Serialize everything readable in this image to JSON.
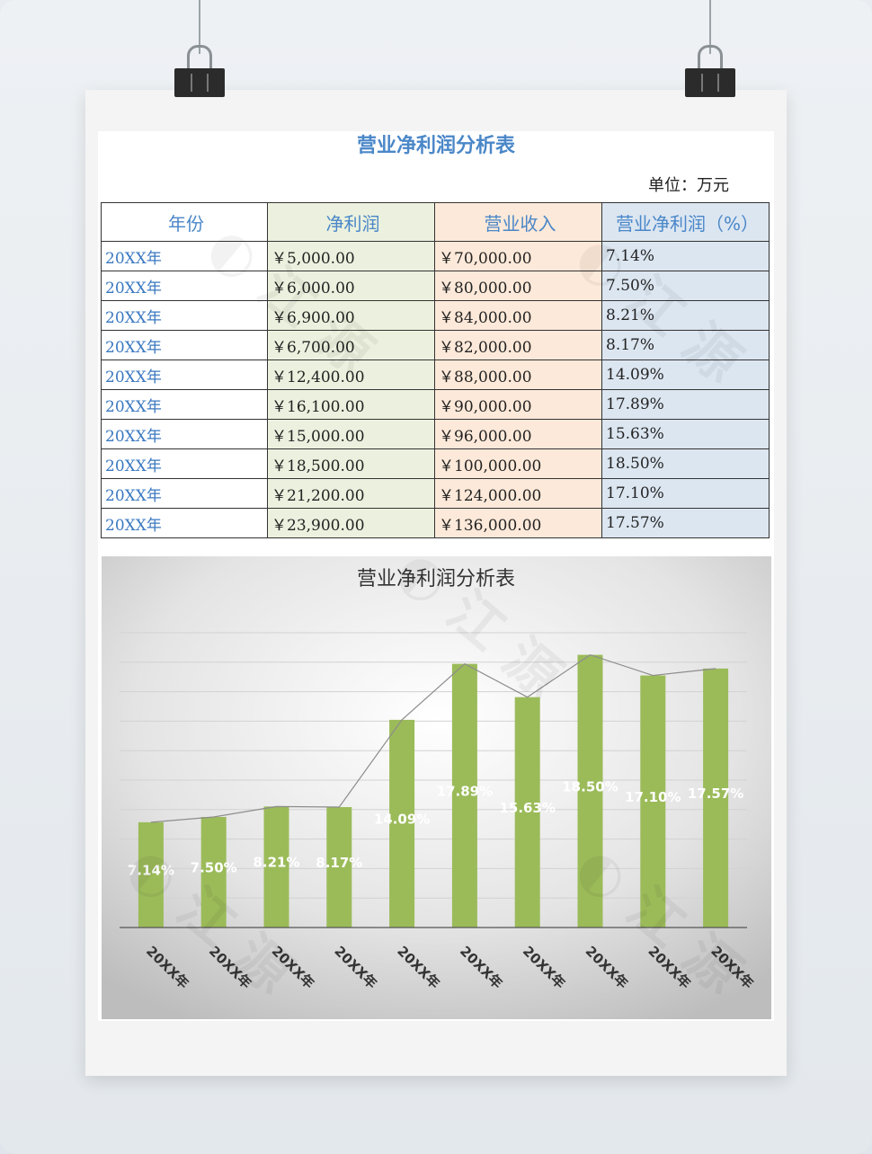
{
  "table": {
    "title": "营业净利润分析表",
    "unit": "单位：万元",
    "headers": [
      "年份",
      "净利润",
      "营业收入",
      "营业净利润（%）"
    ],
    "rows": [
      {
        "year": "20XX年",
        "net_profit": "￥5,000.00",
        "revenue": "￥70,000.00",
        "margin": "7.14%"
      },
      {
        "year": "20XX年",
        "net_profit": "￥6,000.00",
        "revenue": "￥80,000.00",
        "margin": "7.50%"
      },
      {
        "year": "20XX年",
        "net_profit": "￥6,900.00",
        "revenue": "￥84,000.00",
        "margin": "8.21%"
      },
      {
        "year": "20XX年",
        "net_profit": "￥6,700.00",
        "revenue": "￥82,000.00",
        "margin": "8.17%"
      },
      {
        "year": "20XX年",
        "net_profit": "￥12,400.00",
        "revenue": "￥88,000.00",
        "margin": "14.09%"
      },
      {
        "year": "20XX年",
        "net_profit": "￥16,100.00",
        "revenue": "￥90,000.00",
        "margin": "17.89%"
      },
      {
        "year": "20XX年",
        "net_profit": "￥15,000.00",
        "revenue": "￥96,000.00",
        "margin": "15.63%"
      },
      {
        "year": "20XX年",
        "net_profit": "￥18,500.00",
        "revenue": "￥100,000.00",
        "margin": "18.50%"
      },
      {
        "year": "20XX年",
        "net_profit": "￥21,200.00",
        "revenue": "￥124,000.00",
        "margin": "17.10%"
      },
      {
        "year": "20XX年",
        "net_profit": "￥23,900.00",
        "revenue": "￥136,000.00",
        "margin": "17.57%"
      }
    ]
  },
  "chart_data": {
    "type": "bar",
    "title": "营业净利润分析表",
    "categories": [
      "20XX年",
      "20XX年",
      "20XX年",
      "20XX年",
      "20XX年",
      "20XX年",
      "20XX年",
      "20XX年",
      "20XX年",
      "20XX年"
    ],
    "series": [
      {
        "values": [
          7.14,
          7.5,
          8.21,
          8.17,
          14.09,
          17.89,
          15.63,
          18.5,
          17.1,
          17.57
        ]
      }
    ],
    "data_labels": [
      "7.14%",
      "7.50%",
      "8.21%",
      "8.17%",
      "14.09%",
      "17.89%",
      "15.63%",
      "18.50%",
      "17.10%",
      "17.57%"
    ],
    "overlay": "line connecting bar tops",
    "ylim": [
      0,
      20
    ],
    "grid": true,
    "legend": "none",
    "bar_color": "#9bbb59",
    "line_color": "#8c8c8c",
    "label_color": "#ffffff"
  },
  "colors": {
    "title_blue": "#4a87c8",
    "year_blue": "#3a78c0",
    "col_profit": "#ebf1de",
    "col_revenue": "#fde9d9",
    "col_margin": "#dce6f1"
  }
}
